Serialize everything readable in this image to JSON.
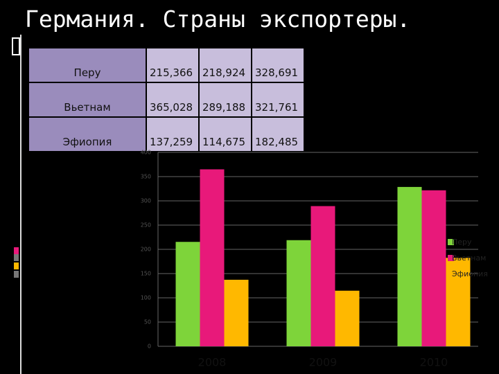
{
  "title": "Германия. Страны экспортеры.",
  "table": {
    "rows": [
      [
        "Перу",
        "215,366",
        "218,924",
        "328,691"
      ],
      [
        "Вьетнам",
        "365,028",
        "289,188",
        "321,761"
      ],
      [
        "Эфиопия",
        "137,259",
        "114,675",
        "182,485"
      ]
    ]
  },
  "chart_data": {
    "type": "bar",
    "categories": [
      "2008",
      "2009",
      "2010"
    ],
    "series": [
      {
        "name": "Перу",
        "color": "#7ed43a",
        "values": [
          215.366,
          218.924,
          328.691
        ]
      },
      {
        "name": "Вьетнам",
        "color": "#e8197a",
        "values": [
          365.028,
          289.188,
          321.761
        ]
      },
      {
        "name": "Эфиопия",
        "color": "#ffb800",
        "values": [
          137.259,
          114.675,
          182.485
        ]
      }
    ],
    "ylim": [
      0,
      400
    ],
    "yticks": [
      0,
      50,
      100,
      150,
      200,
      250,
      300,
      350,
      400
    ],
    "grid": true
  }
}
